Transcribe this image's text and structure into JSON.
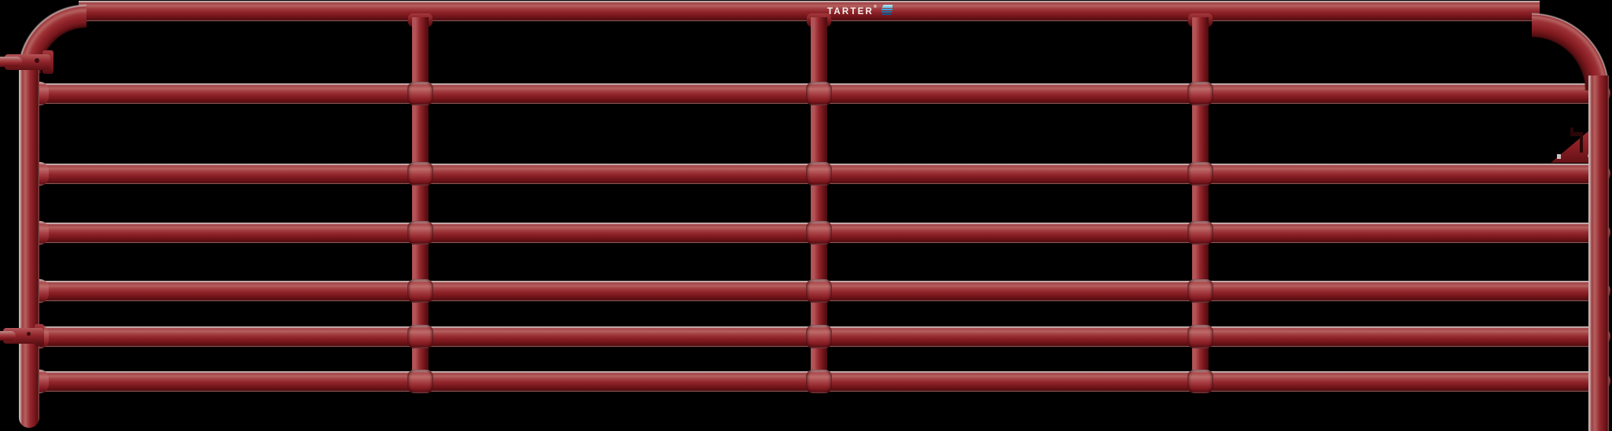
{
  "product": {
    "brand": "TARTER",
    "registered_mark": "®",
    "description": "Red 7-rail steel tube farm gate, four panels, black background"
  },
  "logo": {
    "text": "TARTER",
    "mark": "®",
    "icon": "tarter-flag-icon",
    "icon_colors": [
      "#aadff2",
      "#74c6e6",
      "#3f9fd1",
      "#1a73b0",
      "#0d5694"
    ],
    "text_color": "#f4f1ee"
  },
  "colors": {
    "background": "#000000",
    "gate_red_core": "#8e2329",
    "gate_red_highlight": "#b4605f",
    "gate_red_shadow": "#5c1013",
    "gate_edge_light": "#c7b2b0"
  },
  "structure": {
    "horizontal_rails": 7,
    "vertical_braces": 3,
    "panels": 4,
    "hinge_lugs": 2,
    "latch_plate": 1
  }
}
